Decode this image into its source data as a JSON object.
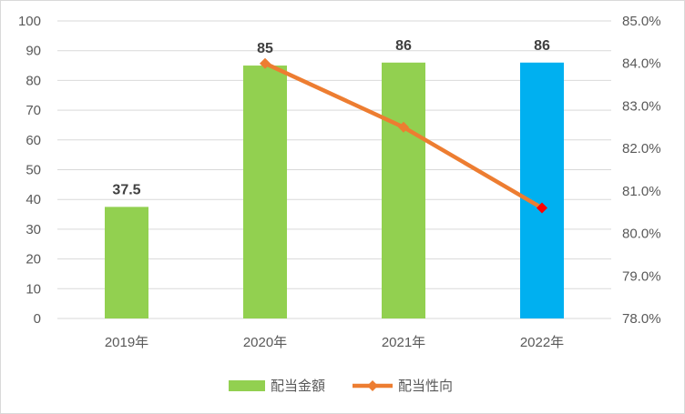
{
  "chart_data": {
    "type": "bar",
    "categories": [
      "2019年",
      "2020年",
      "2021年",
      "2022年"
    ],
    "series": [
      {
        "name": "配当金額",
        "type": "bar",
        "axis": "left",
        "values": [
          37.5,
          85,
          86,
          86
        ],
        "data_labels": [
          "37.5",
          "85",
          "86",
          "86"
        ],
        "color": "#92d050",
        "highlight_color": "#00b0f0",
        "highlight_index": 3
      },
      {
        "name": "配当性向",
        "type": "line",
        "axis": "right",
        "values": [
          null,
          84.0,
          82.5,
          80.6
        ],
        "color": "#ed7d31",
        "highlight_color": "#ff0000",
        "highlight_index": 3
      }
    ],
    "y_left": {
      "range": [
        0,
        100
      ],
      "ticks": [
        "0",
        "10",
        "20",
        "30",
        "40",
        "50",
        "60",
        "70",
        "80",
        "90",
        "100"
      ]
    },
    "y_right": {
      "range": [
        78,
        85
      ],
      "ticks": [
        "78.0%",
        "79.0%",
        "80.0%",
        "81.0%",
        "82.0%",
        "83.0%",
        "84.0%",
        "85.0%"
      ]
    },
    "grid": true,
    "legend_position": "bottom",
    "gridline_color": "#d9d9d9",
    "axis_text_color": "#595959"
  }
}
